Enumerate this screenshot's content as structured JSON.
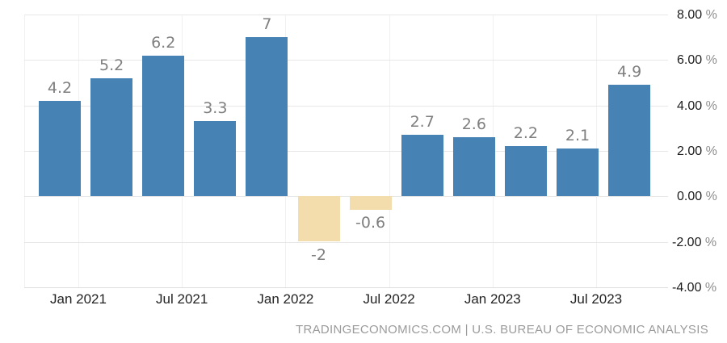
{
  "chart_data": {
    "type": "bar",
    "title": "",
    "x_axis": {
      "ticks": [
        "Jan 2021",
        "Jul 2021",
        "Jan 2022",
        "Jul 2022",
        "Jan 2023",
        "Jul 2023"
      ]
    },
    "y_axis": {
      "tick_labels": [
        "8.00",
        "6.00",
        "4.00",
        "2.00",
        "0.00",
        "-2.00",
        "-4.00"
      ],
      "tick_values": [
        8,
        6,
        4,
        2,
        0,
        -2,
        -4
      ],
      "suffix": "%"
    },
    "ylim": [
      -4,
      8
    ],
    "grid": true,
    "legend": false,
    "bars": [
      {
        "value": 4.2,
        "label": "4.2"
      },
      {
        "value": 5.2,
        "label": "5.2"
      },
      {
        "value": 6.2,
        "label": "6.2"
      },
      {
        "value": 3.3,
        "label": "3.3"
      },
      {
        "value": 7,
        "label": "7"
      },
      {
        "value": -2,
        "label": "-2"
      },
      {
        "value": -0.6,
        "label": "-0.6"
      },
      {
        "value": 2.7,
        "label": "2.7"
      },
      {
        "value": 2.6,
        "label": "2.6"
      },
      {
        "value": 2.2,
        "label": "2.2"
      },
      {
        "value": 2.1,
        "label": "2.1"
      },
      {
        "value": 4.9,
        "label": "4.9"
      }
    ],
    "colors": {
      "positive": "#4682B4",
      "negative": "#F3DDAD"
    }
  },
  "footer": {
    "source": "TRADINGECONOMICS.COM | U.S. BUREAU OF ECONOMIC ANALYSIS"
  }
}
